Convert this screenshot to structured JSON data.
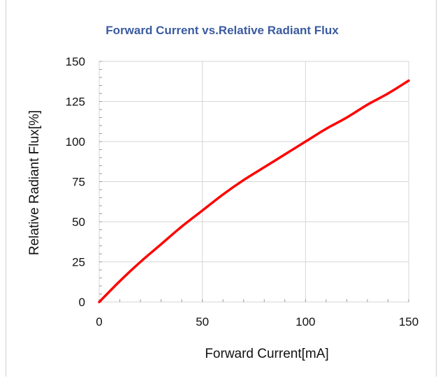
{
  "chart_data": {
    "type": "line",
    "title": "Forward Current vs.Relative Radiant Flux",
    "xlabel": "Forward Current[mA]",
    "ylabel": "Relative Radiant Flux[%]",
    "xlim": [
      0,
      150
    ],
    "ylim": [
      0,
      150
    ],
    "xticks": [
      "0",
      "50",
      "100",
      "150"
    ],
    "yticks": [
      "0",
      "25",
      "50",
      "75",
      "100",
      "125",
      "150"
    ],
    "grid": true,
    "legend": "none",
    "series": [
      {
        "color": "#ff0000",
        "x": [
          0,
          10,
          20,
          30,
          40,
          50,
          60,
          70,
          80,
          90,
          100,
          110,
          120,
          130,
          140,
          150
        ],
        "y": [
          0,
          13,
          25,
          36,
          47,
          57,
          67,
          76,
          84,
          92,
          100,
          108,
          115,
          123,
          130,
          138
        ]
      }
    ]
  }
}
